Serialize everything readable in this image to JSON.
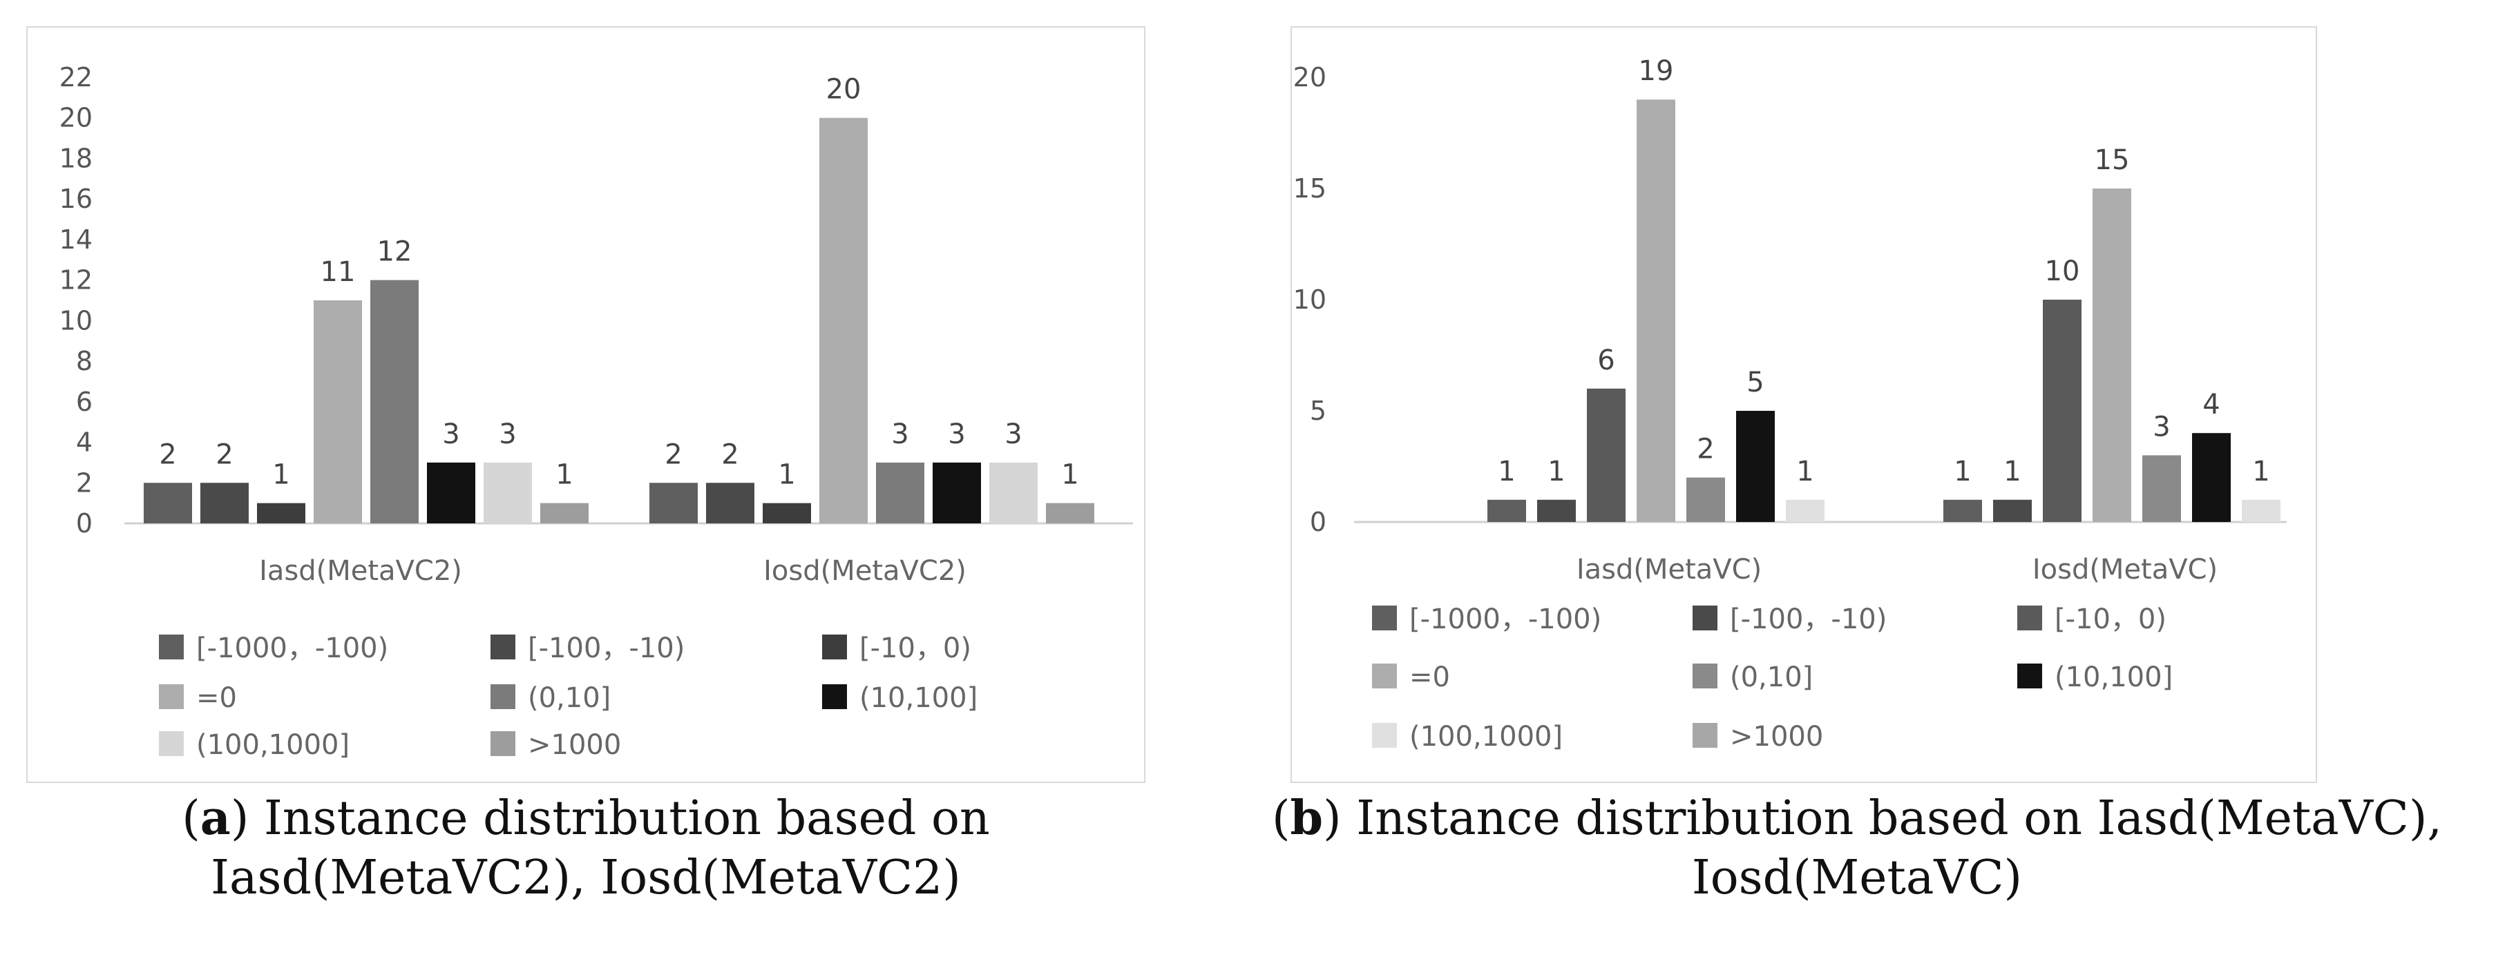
{
  "chart_data": [
    {
      "type": "bar",
      "categories": [
        "Iasd(MetaVC2)",
        "Iosd(MetaVC2)"
      ],
      "yticks": [
        "0",
        "2",
        "4",
        "6",
        "8",
        "10",
        "12",
        "14",
        "16",
        "18",
        "20",
        "22"
      ],
      "ylim": [
        0,
        22
      ],
      "legend_position": "bottom",
      "series": [
        {
          "name": "[-1000，-100)",
          "color": "#5f5f5f",
          "values": [
            2,
            2
          ]
        },
        {
          "name": "[-100，-10)",
          "color": "#4a4a4a",
          "values": [
            2,
            2
          ]
        },
        {
          "name": "[-10，0)",
          "color": "#3d3d3d",
          "values": [
            1,
            1
          ]
        },
        {
          "name": "=0",
          "color": "#adadad",
          "values": [
            11,
            20
          ]
        },
        {
          "name": "(0,10]",
          "color": "#7b7b7b",
          "values": [
            12,
            3
          ]
        },
        {
          "name": "(10,100]",
          "color": "#121212",
          "values": [
            3,
            3
          ]
        },
        {
          "name": "(100,1000]",
          "color": "#d6d6d6",
          "values": [
            3,
            3
          ]
        },
        {
          "name": ">1000",
          "color": "#9d9d9d",
          "values": [
            1,
            1
          ]
        }
      ],
      "caption": {
        "letter": "a",
        "line1": ") Instance distribution based on",
        "line2": "Iasd(MetaVC2), Iosd(MetaVC2)"
      }
    },
    {
      "type": "bar",
      "categories": [
        "Iasd(MetaVC)",
        "Iosd(MetaVC)"
      ],
      "yticks": [
        "0",
        "5",
        "10",
        "15",
        "20"
      ],
      "ylim": [
        0,
        20
      ],
      "legend_position": "bottom",
      "series": [
        {
          "name": "[-1000，-100)",
          "color": "#5f5f5f",
          "values": [
            1,
            1
          ]
        },
        {
          "name": "[-100，-10)",
          "color": "#4a4a4a",
          "values": [
            1,
            1
          ]
        },
        {
          "name": "[-10，0)",
          "color": "#5a5a5a",
          "values": [
            6,
            10
          ]
        },
        {
          "name": "=0",
          "color": "#adadad",
          "values": [
            19,
            15
          ]
        },
        {
          "name": "(0,10]",
          "color": "#8a8a8a",
          "values": [
            2,
            3
          ]
        },
        {
          "name": "(10,100]",
          "color": "#121212",
          "values": [
            5,
            4
          ]
        },
        {
          "name": "(100,1000]",
          "color": "#e0e0e0",
          "values": [
            1,
            1
          ]
        },
        {
          "name": ">1000",
          "color": "#a7a7a7",
          "values": [
            null,
            null
          ]
        }
      ],
      "caption": {
        "letter": "b",
        "line1": ") Instance distribution based on Iasd(MetaVC),",
        "line2": "Iosd(MetaVC)"
      }
    }
  ]
}
